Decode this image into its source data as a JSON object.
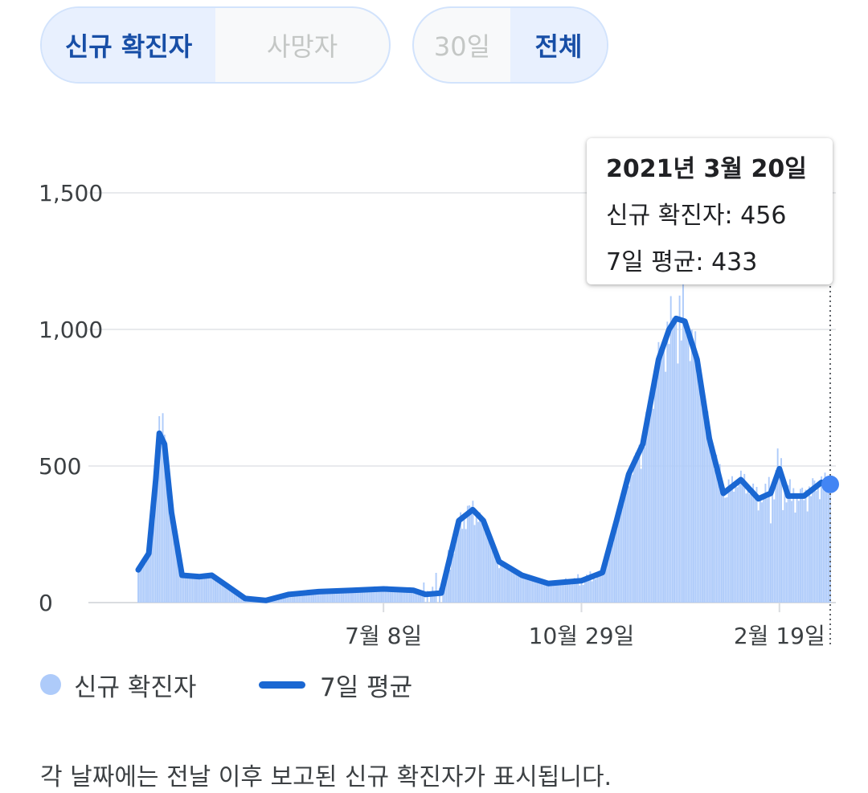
{
  "toggles": {
    "metric": {
      "options": [
        "신규 확진자",
        "사망자"
      ],
      "selected": "신규 확진자"
    },
    "range": {
      "options": [
        "30일",
        "전체"
      ],
      "selected": "전체"
    }
  },
  "tooltip": {
    "date": "2021년 3월 20일",
    "cases_line": "신규 확진자: 456",
    "avg_line": "7일 평균: 433"
  },
  "legend": {
    "cases": "신규 확진자",
    "avg": "7일 평균"
  },
  "footnote": "각 날짜에는 전날 이후 보고된 신규 확진자가 표시됩니다.",
  "colors": {
    "bars": "#aecbfa",
    "line": "#1a67d2",
    "highlight": "#4285f4",
    "grid": "#e8eaed"
  },
  "chart_data": {
    "type": "bar",
    "series": [
      {
        "name": "신규 확진자",
        "type": "bar",
        "start_date": "2020-02-19",
        "end_date": "2021-03-20",
        "x": [
          "2020-02-19",
          "2020-02-25",
          "2020-02-29",
          "2020-03-03",
          "2020-03-08",
          "2020-03-15",
          "2020-03-25",
          "2020-04-05",
          "2020-04-20",
          "2020-05-10",
          "2020-05-28",
          "2020-06-15",
          "2020-07-08",
          "2020-07-25",
          "2020-08-13",
          "2020-08-27",
          "2020-09-01",
          "2020-09-15",
          "2020-10-01",
          "2020-10-15",
          "2020-10-29",
          "2020-11-10",
          "2020-11-20",
          "2020-12-01",
          "2020-12-10",
          "2020-12-16",
          "2020-12-25",
          "2021-01-01",
          "2021-01-08",
          "2021-01-18",
          "2021-02-01",
          "2021-02-10",
          "2021-02-17",
          "2021-02-19",
          "2021-03-01",
          "2021-03-10",
          "2021-03-20"
        ],
        "values": [
          50,
          130,
          420,
          850,
          370,
          90,
          100,
          60,
          15,
          25,
          45,
          45,
          60,
          35,
          200,
          410,
          300,
          130,
          80,
          70,
          110,
          120,
          320,
          570,
          800,
          1000,
          1180,
          900,
          650,
          430,
          420,
          390,
          600,
          580,
          400,
          450,
          456
        ]
      },
      {
        "name": "7일 평균",
        "type": "line",
        "x": [
          "2020-02-19",
          "2020-02-25",
          "2020-02-29",
          "2020-03-02",
          "2020-03-05",
          "2020-03-09",
          "2020-03-15",
          "2020-03-25",
          "2020-04-01",
          "2020-04-10",
          "2020-04-20",
          "2020-05-02",
          "2020-05-15",
          "2020-06-01",
          "2020-06-20",
          "2020-07-08",
          "2020-07-25",
          "2020-08-01",
          "2020-08-10",
          "2020-08-20",
          "2020-08-28",
          "2020-09-03",
          "2020-09-12",
          "2020-09-25",
          "2020-10-10",
          "2020-10-29",
          "2020-11-10",
          "2020-11-18",
          "2020-11-25",
          "2020-12-03",
          "2020-12-12",
          "2020-12-18",
          "2020-12-22",
          "2020-12-27",
          "2021-01-03",
          "2021-01-10",
          "2021-01-18",
          "2021-01-28",
          "2021-02-07",
          "2021-02-14",
          "2021-02-19",
          "2021-02-24",
          "2021-03-05",
          "2021-03-15",
          "2021-03-20"
        ],
        "values": [
          120,
          180,
          450,
          620,
          580,
          330,
          100,
          95,
          100,
          60,
          15,
          8,
          30,
          40,
          45,
          50,
          45,
          30,
          35,
          300,
          340,
          300,
          150,
          100,
          70,
          80,
          110,
          300,
          470,
          580,
          890,
          1000,
          1040,
          1030,
          890,
          600,
          400,
          450,
          380,
          400,
          490,
          390,
          390,
          440,
          433
        ]
      }
    ],
    "y_ticks": [
      "0",
      "500",
      "1,000",
      "1,500"
    ],
    "x_ticks": [
      "7월 8일",
      "10월 29일",
      "2월 19일"
    ],
    "ylim": [
      0,
      1700
    ],
    "title": "",
    "xlabel": "",
    "ylabel": "",
    "grid": true,
    "highlight": {
      "date": "2021-03-20",
      "value": 433
    }
  }
}
